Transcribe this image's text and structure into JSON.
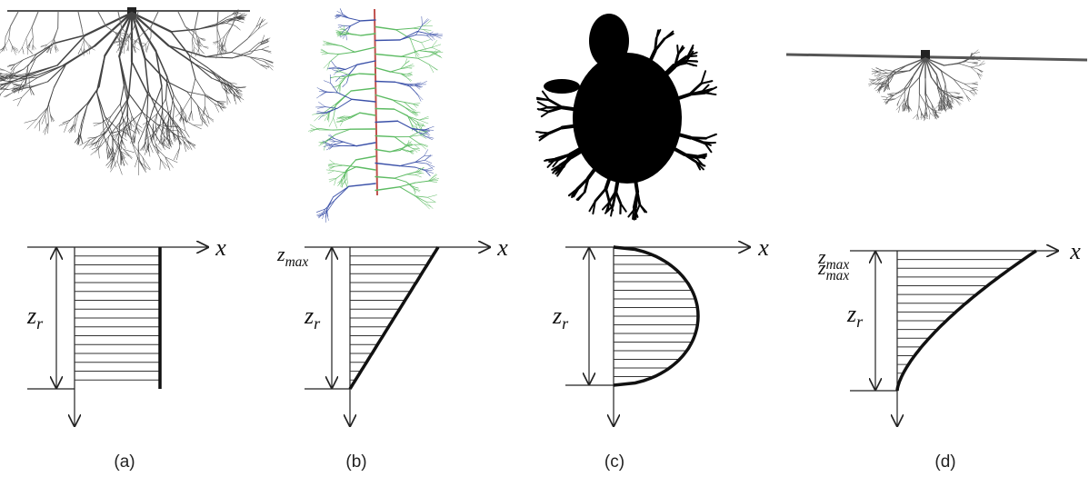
{
  "panels": [
    {
      "caption": "(a)",
      "axis_label": "x",
      "depth_label": {
        "base": "z",
        "sub": "r"
      },
      "top_labels": []
    },
    {
      "caption": "(b)",
      "axis_label": "x",
      "depth_label": {
        "base": "z",
        "sub": "r"
      },
      "top_labels": [
        {
          "base": "z",
          "sub": "max"
        }
      ]
    },
    {
      "caption": "(c)",
      "axis_label": "x",
      "depth_label": {
        "base": "z",
        "sub": "r"
      },
      "top_labels": []
    },
    {
      "caption": "(d)",
      "axis_label": "x",
      "depth_label": {
        "base": "z",
        "sub": "r"
      },
      "top_labels": [
        {
          "base": "z",
          "sub": "max"
        },
        {
          "base": "z",
          "sub": "max"
        }
      ]
    }
  ]
}
